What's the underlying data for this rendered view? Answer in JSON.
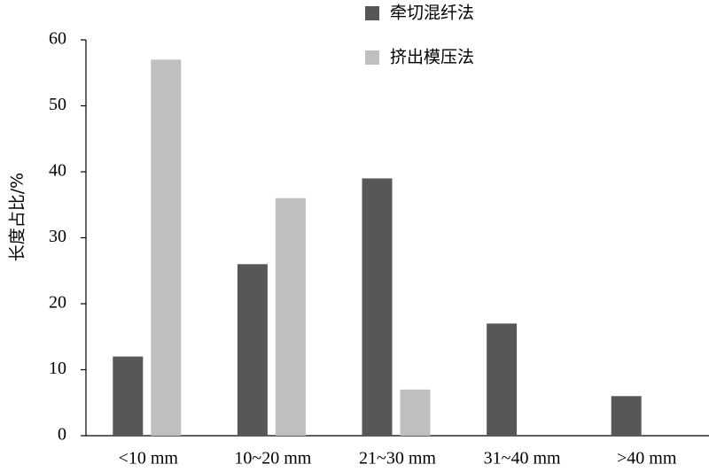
{
  "chart_data": {
    "type": "bar",
    "y_label": "长度占比/%",
    "categories": [
      "<10 mm",
      "10~20 mm",
      "21~30 mm",
      "31~40 mm",
      ">40 mm"
    ],
    "series": [
      {
        "name": "牵切混纤法",
        "color": "#575757",
        "values": [
          12,
          26,
          39,
          17,
          6
        ]
      },
      {
        "name": "挤出模压法",
        "color": "#bfbfbf",
        "values": [
          57,
          36,
          7,
          0,
          0
        ]
      }
    ],
    "ylim": [
      0,
      60
    ],
    "yticks": [
      0,
      10,
      20,
      30,
      40,
      50,
      60
    ],
    "grid": false
  }
}
